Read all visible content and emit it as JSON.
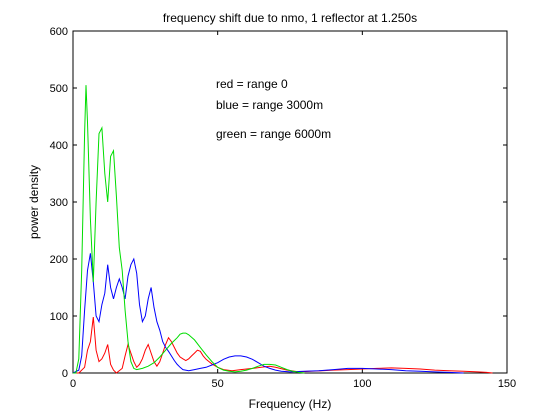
{
  "chart_data": {
    "type": "line",
    "title": "frequency shift due to nmo, 1 reflector at 1.250s",
    "xlabel": "Frequency (Hz)",
    "ylabel": "power density",
    "xlim": [
      0,
      150
    ],
    "ylim": [
      0,
      600
    ],
    "xticks": [
      "0",
      "50",
      "100",
      "150"
    ],
    "yticks": [
      "0",
      "100",
      "200",
      "300",
      "400",
      "500",
      "600"
    ],
    "grid": false,
    "annotations": [
      "red = range 0",
      "blue = range 3000m",
      "green = range 6000m"
    ],
    "series": [
      {
        "color": "#ff0000",
        "points": [
          [
            0,
            0
          ],
          [
            2,
            0
          ],
          [
            4,
            10
          ],
          [
            5,
            40
          ],
          [
            6,
            55
          ],
          [
            7,
            98
          ],
          [
            8,
            40
          ],
          [
            9,
            20
          ],
          [
            10,
            25
          ],
          [
            11,
            35
          ],
          [
            12,
            50
          ],
          [
            13,
            15
          ],
          [
            14,
            5
          ],
          [
            15,
            0
          ],
          [
            17,
            8
          ],
          [
            18,
            30
          ],
          [
            19,
            50
          ],
          [
            20,
            35
          ],
          [
            21,
            20
          ],
          [
            22,
            10
          ],
          [
            23,
            15
          ],
          [
            24,
            25
          ],
          [
            25,
            40
          ],
          [
            26,
            50
          ],
          [
            27,
            35
          ],
          [
            28,
            20
          ],
          [
            29,
            12
          ],
          [
            30,
            20
          ],
          [
            31,
            35
          ],
          [
            32,
            50
          ],
          [
            33,
            62
          ],
          [
            34,
            55
          ],
          [
            35,
            45
          ],
          [
            36,
            35
          ],
          [
            37,
            28
          ],
          [
            38,
            25
          ],
          [
            39,
            22
          ],
          [
            40,
            25
          ],
          [
            41,
            30
          ],
          [
            42,
            35
          ],
          [
            43,
            40
          ],
          [
            44,
            38
          ],
          [
            45,
            30
          ],
          [
            46,
            24
          ],
          [
            47,
            20
          ],
          [
            48,
            16
          ],
          [
            50,
            10
          ],
          [
            52,
            6
          ],
          [
            55,
            4
          ],
          [
            58,
            6
          ],
          [
            62,
            8
          ],
          [
            65,
            10
          ],
          [
            68,
            12
          ],
          [
            70,
            10
          ],
          [
            74,
            5
          ],
          [
            78,
            2
          ],
          [
            82,
            3
          ],
          [
            86,
            4
          ],
          [
            90,
            5
          ],
          [
            95,
            6
          ],
          [
            100,
            7
          ],
          [
            105,
            8
          ],
          [
            110,
            9
          ],
          [
            115,
            8
          ],
          [
            120,
            7
          ],
          [
            125,
            5
          ],
          [
            130,
            4
          ],
          [
            135,
            3
          ],
          [
            140,
            2
          ],
          [
            143,
            1
          ],
          [
            145,
            0
          ]
        ]
      },
      {
        "color": "#0000ff",
        "points": [
          [
            0,
            0
          ],
          [
            2,
            5
          ],
          [
            3,
            30
          ],
          [
            4,
            110
          ],
          [
            5,
            180
          ],
          [
            6,
            210
          ],
          [
            7,
            160
          ],
          [
            8,
            100
          ],
          [
            9,
            90
          ],
          [
            10,
            120
          ],
          [
            11,
            140
          ],
          [
            12,
            190
          ],
          [
            13,
            150
          ],
          [
            14,
            130
          ],
          [
            15,
            150
          ],
          [
            16,
            165
          ],
          [
            17,
            150
          ],
          [
            18,
            130
          ],
          [
            19,
            170
          ],
          [
            20,
            190
          ],
          [
            21,
            200
          ],
          [
            22,
            175
          ],
          [
            23,
            120
          ],
          [
            24,
            90
          ],
          [
            25,
            100
          ],
          [
            26,
            130
          ],
          [
            27,
            150
          ],
          [
            28,
            115
          ],
          [
            29,
            90
          ],
          [
            30,
            75
          ],
          [
            31,
            55
          ],
          [
            32,
            45
          ],
          [
            33,
            38
          ],
          [
            34,
            30
          ],
          [
            35,
            22
          ],
          [
            36,
            15
          ],
          [
            37,
            10
          ],
          [
            38,
            6
          ],
          [
            40,
            4
          ],
          [
            42,
            6
          ],
          [
            44,
            8
          ],
          [
            46,
            10
          ],
          [
            48,
            14
          ],
          [
            50,
            18
          ],
          [
            52,
            24
          ],
          [
            54,
            28
          ],
          [
            56,
            30
          ],
          [
            58,
            30
          ],
          [
            60,
            28
          ],
          [
            62,
            24
          ],
          [
            64,
            18
          ],
          [
            66,
            12
          ],
          [
            68,
            8
          ],
          [
            70,
            5
          ],
          [
            72,
            3
          ],
          [
            75,
            2
          ],
          [
            80,
            3
          ],
          [
            85,
            4
          ],
          [
            90,
            6
          ],
          [
            95,
            8
          ],
          [
            100,
            8
          ],
          [
            105,
            7
          ],
          [
            110,
            6
          ],
          [
            115,
            4
          ],
          [
            120,
            3
          ],
          [
            125,
            2
          ],
          [
            130,
            1
          ],
          [
            135,
            0
          ]
        ]
      },
      {
        "color": "#00dd00",
        "points": [
          [
            0,
            0
          ],
          [
            1,
            0
          ],
          [
            2,
            25
          ],
          [
            3,
            180
          ],
          [
            4,
            420
          ],
          [
            4.5,
            505
          ],
          [
            5,
            440
          ],
          [
            6,
            270
          ],
          [
            7,
            160
          ],
          [
            8,
            300
          ],
          [
            9,
            420
          ],
          [
            10,
            430
          ],
          [
            11,
            350
          ],
          [
            12,
            300
          ],
          [
            13,
            380
          ],
          [
            14,
            390
          ],
          [
            15,
            310
          ],
          [
            16,
            220
          ],
          [
            17,
            180
          ],
          [
            18,
            110
          ],
          [
            19,
            55
          ],
          [
            20,
            20
          ],
          [
            21,
            8
          ],
          [
            22,
            6
          ],
          [
            24,
            8
          ],
          [
            26,
            12
          ],
          [
            28,
            18
          ],
          [
            30,
            28
          ],
          [
            32,
            40
          ],
          [
            34,
            52
          ],
          [
            36,
            62
          ],
          [
            37,
            68
          ],
          [
            38,
            70
          ],
          [
            39,
            70
          ],
          [
            40,
            67
          ],
          [
            42,
            58
          ],
          [
            44,
            45
          ],
          [
            46,
            32
          ],
          [
            48,
            20
          ],
          [
            50,
            10
          ],
          [
            52,
            5
          ],
          [
            54,
            3
          ],
          [
            56,
            2
          ],
          [
            58,
            3
          ],
          [
            60,
            5
          ],
          [
            62,
            8
          ],
          [
            64,
            12
          ],
          [
            66,
            15
          ],
          [
            68,
            15
          ],
          [
            70,
            14
          ],
          [
            72,
            10
          ],
          [
            74,
            6
          ],
          [
            76,
            3
          ],
          [
            78,
            1
          ],
          [
            80,
            0
          ]
        ]
      }
    ]
  }
}
